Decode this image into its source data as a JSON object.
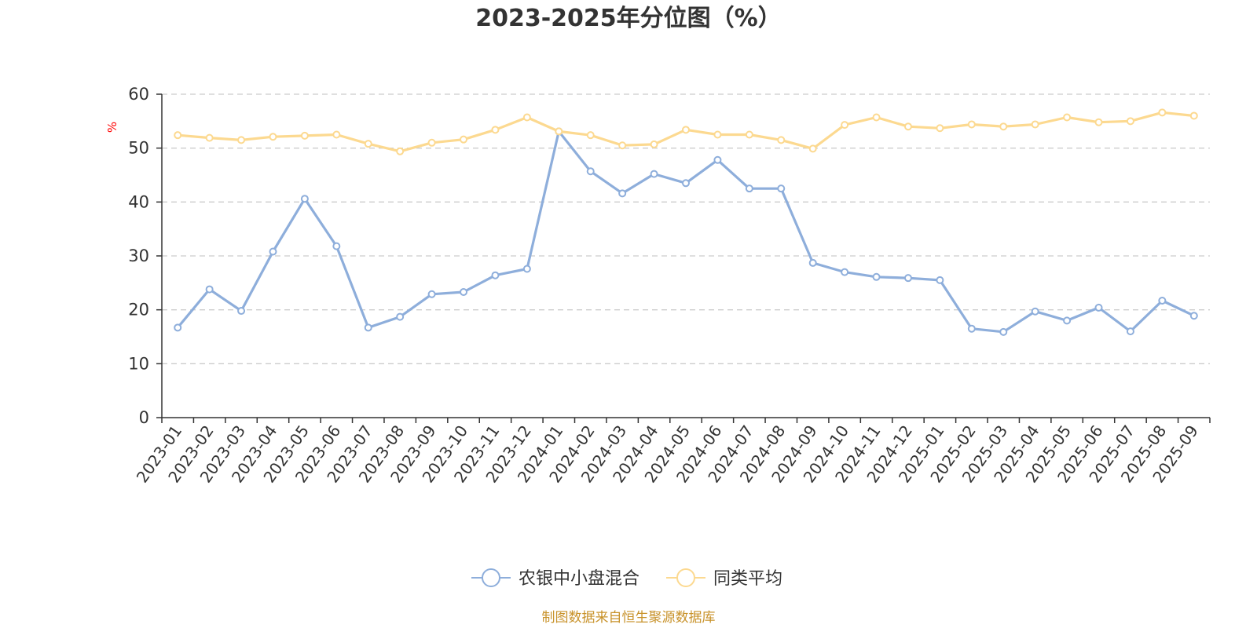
{
  "chart_data": {
    "type": "line",
    "title": "2023-2025年分位图（%）",
    "ylabel": "%",
    "ylim": [
      0,
      60
    ],
    "yticks": [
      0,
      10,
      20,
      30,
      40,
      50,
      60
    ],
    "grid": true,
    "legend_position": "bottom",
    "categories": [
      "2023-01",
      "2023-02",
      "2023-03",
      "2023-04",
      "2023-05",
      "2023-06",
      "2023-07",
      "2023-08",
      "2023-09",
      "2023-10",
      "2023-11",
      "2023-12",
      "2024-01",
      "2024-02",
      "2024-03",
      "2024-04",
      "2024-05",
      "2024-06",
      "2024-07",
      "2024-08",
      "2024-09",
      "2024-10",
      "2024-11",
      "2024-12",
      "2025-01",
      "2025-02",
      "2025-03",
      "2025-04",
      "2025-05",
      "2025-06",
      "2025-07",
      "2025-08",
      "2025-09"
    ],
    "series": [
      {
        "name": "农银中小盘混合",
        "color": "#8eaedb",
        "values": [
          16.7,
          23.8,
          19.8,
          30.8,
          40.6,
          31.8,
          16.7,
          18.7,
          22.9,
          23.3,
          26.4,
          27.6,
          53.1,
          45.7,
          41.6,
          45.2,
          43.5,
          47.8,
          42.5,
          42.5,
          28.7,
          27.0,
          26.1,
          25.9,
          25.5,
          16.5,
          15.9,
          19.7,
          18.0,
          20.4,
          16.0,
          21.7,
          18.9
        ]
      },
      {
        "name": "同类平均",
        "color": "#fcd990",
        "values": [
          52.4,
          51.9,
          51.5,
          52.1,
          52.3,
          52.5,
          50.8,
          49.4,
          51.0,
          51.6,
          53.4,
          55.7,
          53.1,
          52.4,
          50.5,
          50.7,
          53.4,
          52.5,
          52.5,
          51.5,
          49.9,
          54.3,
          55.7,
          54.0,
          53.7,
          54.4,
          54.0,
          54.4,
          55.7,
          54.8,
          55.0,
          56.6,
          56.0
        ]
      }
    ]
  },
  "source_note": "制图数据来自恒生聚源数据库"
}
